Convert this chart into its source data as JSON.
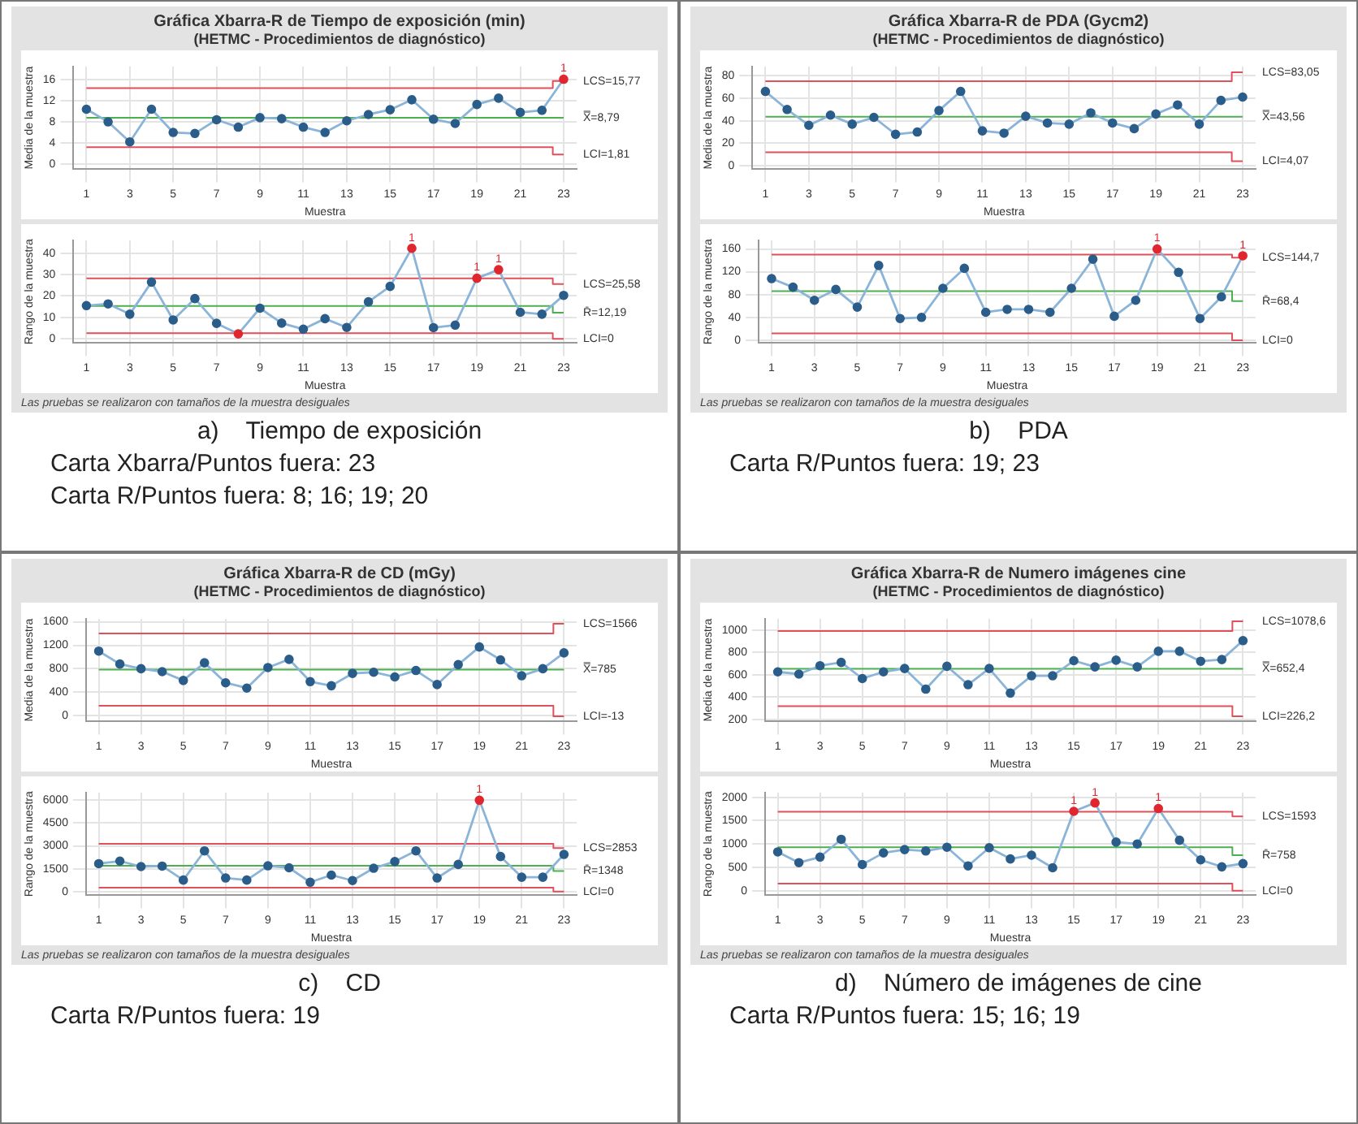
{
  "chart_data": [
    {
      "type": "line",
      "title": "Gráfica Xbarra-R de Tiempo de exposición (min)",
      "subtitle": "(HETMC - Procedimientos de diagnóstico)",
      "xlabel": "Muestra",
      "ylabel": "Media de la muestra",
      "x": [
        1,
        2,
        3,
        4,
        5,
        6,
        7,
        8,
        9,
        10,
        11,
        12,
        13,
        14,
        15,
        16,
        17,
        18,
        19,
        20,
        21,
        22,
        23
      ],
      "xlim": [
        0.4,
        23.6
      ],
      "xticks": [
        1,
        3,
        5,
        7,
        9,
        11,
        13,
        15,
        17,
        19,
        21,
        23
      ],
      "ylim": [
        -1,
        18.5
      ],
      "yticks": [
        0,
        4,
        8,
        12,
        16
      ],
      "grid": true,
      "series": [
        {
          "color": "#8ab4d8",
          "marker": "circle",
          "colors": [
            "#2a5d8a",
            "#2a5d8a",
            "#2a5d8a",
            "#2a5d8a",
            "#2a5d8a",
            "#2a5d8a",
            "#2a5d8a",
            "#2a5d8a",
            "#2a5d8a",
            "#2a5d8a",
            "#2a5d8a",
            "#2a5d8a",
            "#2a5d8a",
            "#2a5d8a",
            "#2a5d8a",
            "#2a5d8a",
            "#2a5d8a",
            "#2a5d8a",
            "#2a5d8a",
            "#2a5d8a",
            "#2a5d8a",
            "#2a5d8a",
            "#e0262e"
          ],
          "values": [
            10.4,
            8.0,
            4.2,
            10.4,
            6.0,
            5.8,
            8.4,
            7.0,
            8.8,
            8.6,
            7.0,
            6.0,
            8.2,
            9.4,
            10.3,
            12.2,
            8.5,
            7.7,
            11.3,
            12.5,
            9.8,
            10.2,
            16.1
          ]
        },
        {
          "type": "step",
          "name": "LCS=15,77",
          "color": "#e0505a",
          "marker": "none",
          "values": [
            14.4,
            14.4,
            14.4,
            14.4,
            14.4,
            14.4,
            14.4,
            14.4,
            14.4,
            14.4,
            14.4,
            14.4,
            14.4,
            14.4,
            14.4,
            14.4,
            14.4,
            14.4,
            14.4,
            14.4,
            14.4,
            14.4,
            15.77
          ]
        },
        {
          "type": "step",
          "name": "X̿=8,79",
          "color": "#4caf50",
          "marker": "none",
          "values": [
            8.79,
            8.79,
            8.79,
            8.79,
            8.79,
            8.79,
            8.79,
            8.79,
            8.79,
            8.79,
            8.79,
            8.79,
            8.79,
            8.79,
            8.79,
            8.79,
            8.79,
            8.79,
            8.79,
            8.79,
            8.79,
            8.79,
            8.79
          ]
        },
        {
          "type": "step",
          "name": "LCI=1,81",
          "color": "#e0505a",
          "marker": "none",
          "values": [
            3.2,
            3.2,
            3.2,
            3.2,
            3.2,
            3.2,
            3.2,
            3.2,
            3.2,
            3.2,
            3.2,
            3.2,
            3.2,
            3.2,
            3.2,
            3.2,
            3.2,
            3.2,
            3.2,
            3.2,
            3.2,
            3.2,
            1.81
          ]
        }
      ],
      "annotations": [
        {
          "text": "1",
          "x": 23,
          "y": 16.1
        }
      ]
    },
    {
      "type": "line",
      "xlabel": "Muestra",
      "ylabel": "Rango de la muestra",
      "x": [
        1,
        2,
        3,
        4,
        5,
        6,
        7,
        8,
        9,
        10,
        11,
        12,
        13,
        14,
        15,
        16,
        17,
        18,
        19,
        20,
        21,
        22,
        23
      ],
      "xlim": [
        0.4,
        23.6
      ],
      "xticks": [
        1,
        3,
        5,
        7,
        9,
        11,
        13,
        15,
        17,
        19,
        21,
        23
      ],
      "ylim": [
        -2,
        46
      ],
      "yticks": [
        0,
        10,
        20,
        30,
        40
      ],
      "grid": true,
      "series": [
        {
          "color": "#8ab4d8",
          "marker": "circle",
          "colors": [
            "#2a5d8a",
            "#2a5d8a",
            "#2a5d8a",
            "#2a5d8a",
            "#2a5d8a",
            "#2a5d8a",
            "#2a5d8a",
            "#e0262e",
            "#2a5d8a",
            "#2a5d8a",
            "#2a5d8a",
            "#2a5d8a",
            "#2a5d8a",
            "#2a5d8a",
            "#2a5d8a",
            "#e0262e",
            "#2a5d8a",
            "#2a5d8a",
            "#e0262e",
            "#e0262e",
            "#2a5d8a",
            "#2a5d8a",
            "#2a5d8a"
          ],
          "values": [
            15.5,
            16.3,
            11.5,
            26.5,
            8.8,
            18.8,
            7.2,
            2.3,
            14.3,
            7.3,
            4.5,
            9.4,
            5.3,
            17.3,
            24.5,
            42.3,
            5.2,
            6.4,
            28.3,
            32.3,
            12.4,
            11.5,
            20.3
          ]
        },
        {
          "type": "step",
          "name": "LCS=25,58",
          "color": "#e0505a",
          "marker": "none",
          "values": [
            28.2,
            28.2,
            28.2,
            28.2,
            28.2,
            28.2,
            28.2,
            28.2,
            28.2,
            28.2,
            28.2,
            28.2,
            28.2,
            28.2,
            28.2,
            28.2,
            28.2,
            28.2,
            28.2,
            28.2,
            28.2,
            28.2,
            25.58
          ]
        },
        {
          "type": "step",
          "name": "R̄=12,19",
          "color": "#4caf50",
          "marker": "none",
          "values": [
            15.3,
            15.3,
            15.3,
            15.3,
            15.3,
            15.3,
            15.3,
            15.3,
            15.3,
            15.3,
            15.3,
            15.3,
            15.3,
            15.3,
            15.3,
            15.3,
            15.3,
            15.3,
            15.3,
            15.3,
            15.3,
            15.3,
            12.19
          ]
        },
        {
          "type": "step",
          "name": "LCI=0",
          "color": "#e0505a",
          "marker": "none",
          "values": [
            2.6,
            2.6,
            2.6,
            2.6,
            2.6,
            2.6,
            2.6,
            2.6,
            2.6,
            2.6,
            2.6,
            2.6,
            2.6,
            2.6,
            2.6,
            2.6,
            2.6,
            2.6,
            2.6,
            2.6,
            2.6,
            2.6,
            0
          ]
        }
      ],
      "annotations": [
        "Las pruebas se realizaron con tamaños de la muestra desiguales",
        "a)    Tiempo de exposición",
        "Carta Xbarra/Puntos fuera: 23",
        "Carta R/Puntos fuera: 8; 16; 19; 20",
        {
          "text": "1",
          "x": 16,
          "y": 42.3
        },
        {
          "text": "1",
          "x": 19,
          "y": 28.3
        },
        {
          "text": "1",
          "x": 20,
          "y": 32.3
        }
      ]
    },
    {
      "type": "line",
      "title": "Gráfica Xbarra-R de PDA (Gycm2)",
      "subtitle": "(HETMC - Procedimientos de diagnóstico)",
      "xlabel": "Muestra",
      "ylabel": "Media de la muestra",
      "x": [
        1,
        2,
        3,
        4,
        5,
        6,
        7,
        8,
        9,
        10,
        11,
        12,
        13,
        14,
        15,
        16,
        17,
        18,
        19,
        20,
        21,
        22,
        23
      ],
      "xlim": [
        0.4,
        23.6
      ],
      "xticks": [
        1,
        3,
        5,
        7,
        9,
        11,
        13,
        15,
        17,
        19,
        21,
        23
      ],
      "ylim": [
        -3,
        88
      ],
      "yticks": [
        0,
        20,
        40,
        60,
        80
      ],
      "grid": true,
      "series": [
        {
          "color": "#8ab4d8",
          "marker": "circle",
          "colors": [
            "#2a5d8a",
            "#2a5d8a",
            "#2a5d8a",
            "#2a5d8a",
            "#2a5d8a",
            "#2a5d8a",
            "#2a5d8a",
            "#2a5d8a",
            "#2a5d8a",
            "#2a5d8a",
            "#2a5d8a",
            "#2a5d8a",
            "#2a5d8a",
            "#2a5d8a",
            "#2a5d8a",
            "#2a5d8a",
            "#2a5d8a",
            "#2a5d8a",
            "#2a5d8a",
            "#2a5d8a",
            "#2a5d8a",
            "#2a5d8a",
            "#2a5d8a"
          ],
          "values": [
            66,
            50,
            36,
            45,
            37,
            43,
            28,
            30,
            49,
            66,
            31,
            29,
            44,
            38,
            37,
            47,
            38,
            33,
            46,
            54,
            37,
            58,
            61
          ]
        },
        {
          "type": "step",
          "name": "LCS=83,05",
          "color": "#e0505a",
          "marker": "none",
          "values": [
            75,
            75,
            75,
            75,
            75,
            75,
            75,
            75,
            75,
            75,
            75,
            75,
            75,
            75,
            75,
            75,
            75,
            75,
            75,
            75,
            75,
            75,
            83.05
          ]
        },
        {
          "type": "step",
          "name": "X̿=43,56",
          "color": "#4caf50",
          "marker": "none",
          "values": [
            43.56,
            43.56,
            43.56,
            43.56,
            43.56,
            43.56,
            43.56,
            43.56,
            43.56,
            43.56,
            43.56,
            43.56,
            43.56,
            43.56,
            43.56,
            43.56,
            43.56,
            43.56,
            43.56,
            43.56,
            43.56,
            43.56,
            43.56
          ]
        },
        {
          "type": "step",
          "name": "LCI=4,07",
          "color": "#e0505a",
          "marker": "none",
          "values": [
            12,
            12,
            12,
            12,
            12,
            12,
            12,
            12,
            12,
            12,
            12,
            12,
            12,
            12,
            12,
            12,
            12,
            12,
            12,
            12,
            12,
            12,
            4.07
          ]
        }
      ]
    },
    {
      "type": "line",
      "xlabel": "Muestra",
      "ylabel": "Rango de la muestra",
      "x": [
        1,
        2,
        3,
        4,
        5,
        6,
        7,
        8,
        9,
        10,
        11,
        12,
        13,
        14,
        15,
        16,
        17,
        18,
        19,
        20,
        21,
        22,
        23
      ],
      "xlim": [
        0.4,
        23.6
      ],
      "xticks": [
        1,
        3,
        5,
        7,
        9,
        11,
        13,
        15,
        17,
        19,
        21,
        23
      ],
      "ylim": [
        -5,
        175
      ],
      "yticks": [
        0,
        40,
        80,
        120,
        160
      ],
      "grid": true,
      "series": [
        {
          "color": "#8ab4d8",
          "marker": "circle",
          "colors": [
            "#2a5d8a",
            "#2a5d8a",
            "#2a5d8a",
            "#2a5d8a",
            "#2a5d8a",
            "#2a5d8a",
            "#2a5d8a",
            "#2a5d8a",
            "#2a5d8a",
            "#2a5d8a",
            "#2a5d8a",
            "#2a5d8a",
            "#2a5d8a",
            "#2a5d8a",
            "#2a5d8a",
            "#2a5d8a",
            "#2a5d8a",
            "#2a5d8a",
            "#e0262e",
            "#2a5d8a",
            "#2a5d8a",
            "#2a5d8a",
            "#e0262e"
          ],
          "values": [
            108,
            93,
            70,
            89,
            58,
            131,
            38,
            40,
            91,
            126,
            49,
            54,
            54,
            49,
            91,
            142,
            42,
            70,
            160,
            119,
            38,
            76,
            148
          ]
        },
        {
          "type": "step",
          "name": "LCS=144,7",
          "color": "#e0505a",
          "marker": "none",
          "values": [
            150,
            150,
            150,
            150,
            150,
            150,
            150,
            150,
            150,
            150,
            150,
            150,
            150,
            150,
            150,
            150,
            150,
            150,
            150,
            150,
            150,
            150,
            144.7
          ]
        },
        {
          "type": "step",
          "name": "R̄=68,4",
          "color": "#4caf50",
          "marker": "none",
          "values": [
            86,
            86,
            86,
            86,
            86,
            86,
            86,
            86,
            86,
            86,
            86,
            86,
            86,
            86,
            86,
            86,
            86,
            86,
            86,
            86,
            86,
            86,
            68.4
          ]
        },
        {
          "type": "step",
          "name": "LCI=0",
          "color": "#e0505a",
          "marker": "none",
          "values": [
            12,
            12,
            12,
            12,
            12,
            12,
            12,
            12,
            12,
            12,
            12,
            12,
            12,
            12,
            12,
            12,
            12,
            12,
            12,
            12,
            12,
            12,
            0
          ]
        }
      ],
      "annotations": [
        "Las pruebas se realizaron con tamaños de la muestra desiguales",
        "b)    PDA",
        "Carta R/Puntos fuera: 19; 23",
        {
          "text": "1",
          "x": 19,
          "y": 160
        },
        {
          "text": "1",
          "x": 23,
          "y": 148
        }
      ]
    },
    {
      "type": "line",
      "title": "Gráfica Xbarra-R de CD (mGy)",
      "subtitle": "(HETMC - Procedimientos de diagnóstico)",
      "xlabel": "Muestra",
      "ylabel": "Media de la muestra",
      "x": [
        1,
        2,
        3,
        4,
        5,
        6,
        7,
        8,
        9,
        10,
        11,
        12,
        13,
        14,
        15,
        16,
        17,
        18,
        19,
        20,
        21,
        22,
        23
      ],
      "xlim": [
        0.4,
        23.6
      ],
      "xticks": [
        1,
        3,
        5,
        7,
        9,
        11,
        13,
        15,
        17,
        19,
        21,
        23
      ],
      "ylim": [
        -100,
        1650
      ],
      "yticks": [
        0,
        400,
        800,
        1200,
        1600
      ],
      "grid": true,
      "series": [
        {
          "color": "#8ab4d8",
          "marker": "circle",
          "colors": [
            "#2a5d8a",
            "#2a5d8a",
            "#2a5d8a",
            "#2a5d8a",
            "#2a5d8a",
            "#2a5d8a",
            "#2a5d8a",
            "#2a5d8a",
            "#2a5d8a",
            "#2a5d8a",
            "#2a5d8a",
            "#2a5d8a",
            "#2a5d8a",
            "#2a5d8a",
            "#2a5d8a",
            "#2a5d8a",
            "#2a5d8a",
            "#2a5d8a",
            "#2a5d8a",
            "#2a5d8a",
            "#2a5d8a",
            "#2a5d8a",
            "#2a5d8a"
          ],
          "values": [
            1100,
            880,
            800,
            750,
            600,
            900,
            560,
            470,
            820,
            960,
            580,
            510,
            720,
            740,
            660,
            770,
            530,
            870,
            1170,
            950,
            680,
            800,
            1070
          ]
        },
        {
          "type": "step",
          "name": "LCS=1566",
          "color": "#e0505a",
          "marker": "none",
          "values": [
            1400,
            1400,
            1400,
            1400,
            1400,
            1400,
            1400,
            1400,
            1400,
            1400,
            1400,
            1400,
            1400,
            1400,
            1400,
            1400,
            1400,
            1400,
            1400,
            1400,
            1400,
            1400,
            1566
          ]
        },
        {
          "type": "step",
          "name": "X̿=785",
          "color": "#4caf50",
          "marker": "none",
          "values": [
            785,
            785,
            785,
            785,
            785,
            785,
            785,
            785,
            785,
            785,
            785,
            785,
            785,
            785,
            785,
            785,
            785,
            785,
            785,
            785,
            785,
            785,
            785
          ]
        },
        {
          "type": "step",
          "name": "LCI=-13",
          "color": "#e0505a",
          "marker": "none",
          "values": [
            170,
            170,
            170,
            170,
            170,
            170,
            170,
            170,
            170,
            170,
            170,
            170,
            170,
            170,
            170,
            170,
            170,
            170,
            170,
            170,
            170,
            170,
            -13
          ]
        }
      ]
    },
    {
      "type": "line",
      "xlabel": "Muestra",
      "ylabel": "Rango de la muestra",
      "x": [
        1,
        2,
        3,
        4,
        5,
        6,
        7,
        8,
        9,
        10,
        11,
        12,
        13,
        14,
        15,
        16,
        17,
        18,
        19,
        20,
        21,
        22,
        23
      ],
      "xlim": [
        0.4,
        23.6
      ],
      "xticks": [
        1,
        3,
        5,
        7,
        9,
        11,
        13,
        15,
        17,
        19,
        21,
        23
      ],
      "ylim": [
        -250,
        6500
      ],
      "yticks": [
        0,
        1500,
        3000,
        4500,
        6000
      ],
      "grid": true,
      "series": [
        {
          "color": "#8ab4d8",
          "marker": "circle",
          "colors": [
            "#2a5d8a",
            "#2a5d8a",
            "#2a5d8a",
            "#2a5d8a",
            "#2a5d8a",
            "#2a5d8a",
            "#2a5d8a",
            "#2a5d8a",
            "#2a5d8a",
            "#2a5d8a",
            "#2a5d8a",
            "#2a5d8a",
            "#2a5d8a",
            "#2a5d8a",
            "#2a5d8a",
            "#2a5d8a",
            "#2a5d8a",
            "#2a5d8a",
            "#e0262e",
            "#2a5d8a",
            "#2a5d8a",
            "#2a5d8a",
            "#2a5d8a"
          ],
          "values": [
            1830,
            2000,
            1640,
            1670,
            750,
            2670,
            890,
            750,
            1690,
            1560,
            610,
            1080,
            720,
            1530,
            1970,
            2670,
            890,
            1780,
            6000,
            2300,
            940,
            940,
            2440
          ]
        },
        {
          "type": "step",
          "name": "LCS=2853",
          "color": "#e0505a",
          "marker": "none",
          "values": [
            3140,
            3140,
            3140,
            3140,
            3140,
            3140,
            3140,
            3140,
            3140,
            3140,
            3140,
            3140,
            3140,
            3140,
            3140,
            3140,
            3140,
            3140,
            3140,
            3140,
            3140,
            3140,
            2853
          ]
        },
        {
          "type": "step",
          "name": "R̄=1348",
          "color": "#4caf50",
          "marker": "none",
          "values": [
            1690,
            1690,
            1690,
            1690,
            1690,
            1690,
            1690,
            1690,
            1690,
            1690,
            1690,
            1690,
            1690,
            1690,
            1690,
            1690,
            1690,
            1690,
            1690,
            1690,
            1690,
            1690,
            1348
          ]
        },
        {
          "type": "step",
          "name": "LCI=0",
          "color": "#e0505a",
          "marker": "none",
          "values": [
            250,
            250,
            250,
            250,
            250,
            250,
            250,
            250,
            250,
            250,
            250,
            250,
            250,
            250,
            250,
            250,
            250,
            250,
            250,
            250,
            250,
            250,
            0
          ]
        }
      ],
      "annotations": [
        "Las pruebas se realizaron con tamaños de la muestra desiguales",
        "c)    CD",
        "Carta R/Puntos fuera: 19",
        {
          "text": "1",
          "x": 19,
          "y": 6000
        }
      ]
    },
    {
      "type": "line",
      "title": "Gráfica Xbarra-R de Numero imágenes cine",
      "subtitle": "(HETMC - Procedimientos de diagnóstico)",
      "xlabel": "Muestra",
      "ylabel": "Media de la muestra",
      "x": [
        1,
        2,
        3,
        4,
        5,
        6,
        7,
        8,
        9,
        10,
        11,
        12,
        13,
        14,
        15,
        16,
        17,
        18,
        19,
        20,
        21,
        22,
        23
      ],
      "xlim": [
        0.4,
        23.6
      ],
      "xticks": [
        1,
        3,
        5,
        7,
        9,
        11,
        13,
        15,
        17,
        19,
        21,
        23
      ],
      "ylim": [
        180,
        1100
      ],
      "yticks": [
        200,
        400,
        600,
        800,
        1000
      ],
      "grid": true,
      "series": [
        {
          "color": "#8ab4d8",
          "marker": "circle",
          "colors": [
            "#2a5d8a",
            "#2a5d8a",
            "#2a5d8a",
            "#2a5d8a",
            "#2a5d8a",
            "#2a5d8a",
            "#2a5d8a",
            "#2a5d8a",
            "#2a5d8a",
            "#2a5d8a",
            "#2a5d8a",
            "#2a5d8a",
            "#2a5d8a",
            "#2a5d8a",
            "#2a5d8a",
            "#2a5d8a",
            "#2a5d8a",
            "#2a5d8a",
            "#2a5d8a",
            "#2a5d8a",
            "#2a5d8a",
            "#2a5d8a",
            "#2a5d8a"
          ],
          "values": [
            625,
            605,
            680,
            710,
            565,
            625,
            655,
            470,
            675,
            510,
            655,
            435,
            590,
            590,
            725,
            670,
            730,
            670,
            810,
            810,
            720,
            735,
            905
          ]
        },
        {
          "type": "step",
          "name": "LCS=1078,6",
          "color": "#e0505a",
          "marker": "none",
          "values": [
            990,
            990,
            990,
            990,
            990,
            990,
            990,
            990,
            990,
            990,
            990,
            990,
            990,
            990,
            990,
            990,
            990,
            990,
            990,
            990,
            990,
            990,
            1078.6
          ]
        },
        {
          "type": "step",
          "name": "X̿=652,4",
          "color": "#4caf50",
          "marker": "none",
          "values": [
            652.4,
            652.4,
            652.4,
            652.4,
            652.4,
            652.4,
            652.4,
            652.4,
            652.4,
            652.4,
            652.4,
            652.4,
            652.4,
            652.4,
            652.4,
            652.4,
            652.4,
            652.4,
            652.4,
            652.4,
            652.4,
            652.4,
            652.4
          ]
        },
        {
          "type": "step",
          "name": "LCI=226,2",
          "color": "#e0505a",
          "marker": "none",
          "values": [
            318,
            318,
            318,
            318,
            318,
            318,
            318,
            318,
            318,
            318,
            318,
            318,
            318,
            318,
            318,
            318,
            318,
            318,
            318,
            318,
            318,
            318,
            226.2
          ]
        }
      ]
    },
    {
      "type": "line",
      "xlabel": "Muestra",
      "ylabel": "Rango de la muestra",
      "x": [
        1,
        2,
        3,
        4,
        5,
        6,
        7,
        8,
        9,
        10,
        11,
        12,
        13,
        14,
        15,
        16,
        17,
        18,
        19,
        20,
        21,
        22,
        23
      ],
      "xlim": [
        0.4,
        23.6
      ],
      "xticks": [
        1,
        3,
        5,
        7,
        9,
        11,
        13,
        15,
        17,
        19,
        21,
        23
      ],
      "ylim": [
        -100,
        2100
      ],
      "yticks": [
        0,
        500,
        1000,
        1500,
        2000
      ],
      "grid": true,
      "series": [
        {
          "color": "#8ab4d8",
          "marker": "circle",
          "colors": [
            "#2a5d8a",
            "#2a5d8a",
            "#2a5d8a",
            "#2a5d8a",
            "#2a5d8a",
            "#2a5d8a",
            "#2a5d8a",
            "#2a5d8a",
            "#2a5d8a",
            "#2a5d8a",
            "#2a5d8a",
            "#2a5d8a",
            "#2a5d8a",
            "#2a5d8a",
            "#e0262e",
            "#e0262e",
            "#2a5d8a",
            "#2a5d8a",
            "#e0262e",
            "#2a5d8a",
            "#2a5d8a",
            "#2a5d8a",
            "#2a5d8a"
          ],
          "values": [
            830,
            600,
            720,
            1100,
            560,
            810,
            880,
            850,
            930,
            530,
            920,
            680,
            760,
            490,
            1700,
            1880,
            1040,
            1000,
            1760,
            1080,
            660,
            510,
            580
          ]
        },
        {
          "type": "step",
          "name": "LCS=1593",
          "color": "#e0505a",
          "marker": "none",
          "values": [
            1690,
            1690,
            1690,
            1690,
            1690,
            1690,
            1690,
            1690,
            1690,
            1690,
            1690,
            1690,
            1690,
            1690,
            1690,
            1690,
            1690,
            1690,
            1690,
            1690,
            1690,
            1690,
            1593
          ]
        },
        {
          "type": "step",
          "name": "R̄=758",
          "color": "#4caf50",
          "marker": "none",
          "values": [
            930,
            930,
            930,
            930,
            930,
            930,
            930,
            930,
            930,
            930,
            930,
            930,
            930,
            930,
            930,
            930,
            930,
            930,
            930,
            930,
            930,
            930,
            758
          ]
        },
        {
          "type": "step",
          "name": "LCI=0",
          "color": "#e0505a",
          "marker": "none",
          "values": [
            150,
            150,
            150,
            150,
            150,
            150,
            150,
            150,
            150,
            150,
            150,
            150,
            150,
            150,
            150,
            150,
            150,
            150,
            150,
            150,
            150,
            150,
            0
          ]
        }
      ],
      "annotations": [
        "Las pruebas se realizaron con tamaños de la muestra desiguales",
        "d)    Número de imágenes de cine",
        "Carta R/Puntos fuera: 15; 16; 19",
        {
          "text": "1",
          "x": 15,
          "y": 1700
        },
        {
          "text": "1",
          "x": 16,
          "y": 1880
        },
        {
          "text": "1",
          "x": 19,
          "y": 1760
        }
      ]
    }
  ]
}
